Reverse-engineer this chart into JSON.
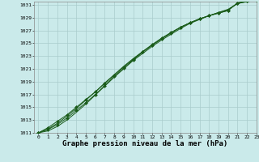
{
  "title": "Graphe pression niveau de la mer (hPa)",
  "background_color": "#caeaea",
  "grid_color": "#aacccc",
  "line_color": "#1a5c1a",
  "marker_color": "#1a5c1a",
  "xlim": [
    -0.5,
    23
  ],
  "ylim": [
    1011,
    1031.5
  ],
  "yticks": [
    1011,
    1013,
    1015,
    1017,
    1019,
    1021,
    1023,
    1025,
    1027,
    1029,
    1031
  ],
  "xticks": [
    0,
    1,
    2,
    3,
    4,
    5,
    6,
    7,
    8,
    9,
    10,
    11,
    12,
    13,
    14,
    15,
    16,
    17,
    18,
    19,
    20,
    21,
    22,
    23
  ],
  "series": [
    [
      1011.0,
      1011.8,
      1012.8,
      1013.8,
      1015.0,
      1016.2,
      1017.4,
      1018.7,
      1020.0,
      1021.3,
      1022.5,
      1023.7,
      1024.8,
      1025.8,
      1026.7,
      1027.5,
      1028.2,
      1028.8,
      1029.3,
      1029.7,
      1030.1,
      1031.3,
      1031.6,
      1031.8
    ],
    [
      1011.0,
      1011.5,
      1012.3,
      1013.3,
      1014.5,
      1015.7,
      1017.0,
      1018.4,
      1019.8,
      1021.1,
      1022.4,
      1023.6,
      1024.7,
      1025.7,
      1026.6,
      1027.5,
      1028.2,
      1028.8,
      1029.3,
      1029.7,
      1030.1,
      1031.3,
      1031.6,
      1031.8
    ],
    [
      1011.0,
      1011.6,
      1012.5,
      1013.6,
      1014.8,
      1016.1,
      1017.4,
      1018.8,
      1020.1,
      1021.4,
      1022.6,
      1023.7,
      1024.7,
      1025.7,
      1026.6,
      1027.5,
      1028.2,
      1028.8,
      1029.3,
      1029.8,
      1030.2,
      1031.2,
      1031.5,
      1031.7
    ],
    [
      1011.0,
      1011.3,
      1012.0,
      1013.0,
      1014.2,
      1015.5,
      1016.9,
      1018.3,
      1019.7,
      1021.0,
      1022.3,
      1023.4,
      1024.5,
      1025.5,
      1026.4,
      1027.3,
      1028.1,
      1028.7,
      1029.3,
      1029.8,
      1030.3,
      1031.2,
      1031.5,
      1031.7
    ]
  ],
  "marker_series": [
    0,
    1
  ],
  "marker": "D",
  "marker_size": 2.0,
  "linewidth": 0.7,
  "title_fontsize": 6.5,
  "tick_fontsize": 4.5,
  "ylabel_fontsize": 5.0
}
